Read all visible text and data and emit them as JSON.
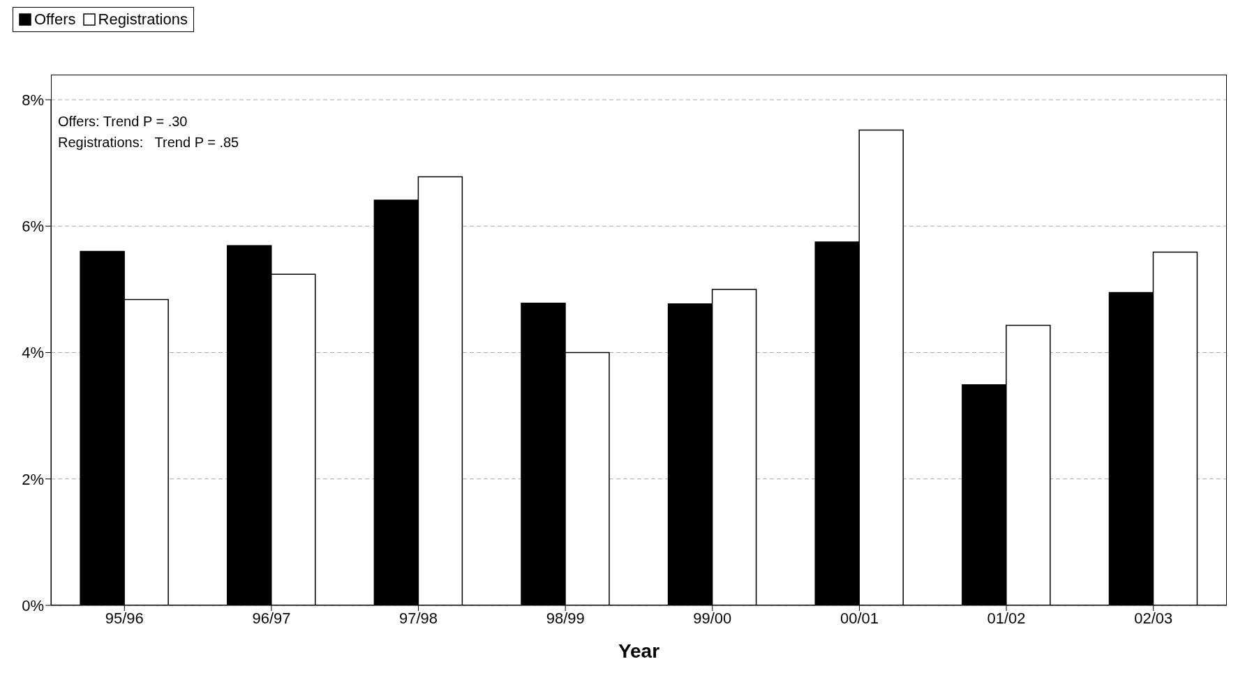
{
  "chart_data": {
    "type": "bar",
    "xlabel": "Year",
    "categories": [
      "95/96",
      "96/97",
      "97/98",
      "98/99",
      "99/00",
      "00/01",
      "01/02",
      "02/03"
    ],
    "series": [
      {
        "name": "Offers",
        "color": "#000000",
        "values": [
          5.6,
          5.69,
          6.41,
          4.78,
          4.77,
          5.75,
          3.49,
          4.95
        ]
      },
      {
        "name": "Registrations",
        "color": "#ffffff",
        "values": [
          4.84,
          5.24,
          6.78,
          4.0,
          5.0,
          7.52,
          4.43,
          5.59
        ]
      }
    ],
    "ylim": [
      0,
      8
    ],
    "yticks": [
      {
        "value": 0,
        "label": "0%"
      },
      {
        "value": 2,
        "label": "2%"
      },
      {
        "value": 4,
        "label": "4%"
      },
      {
        "value": 6,
        "label": "6%"
      },
      {
        "value": 8,
        "label": "8%"
      }
    ],
    "grid": "y",
    "legend": "top",
    "annotations": [
      "Offers: Trend P = .30",
      "Registrations:   Trend P = .85"
    ]
  }
}
